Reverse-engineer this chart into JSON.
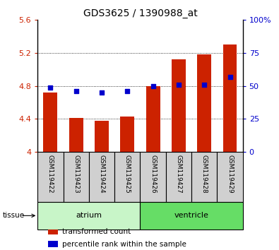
{
  "title": "GDS3625 / 1390988_at",
  "samples": [
    "GSM119422",
    "GSM119423",
    "GSM119424",
    "GSM119425",
    "GSM119426",
    "GSM119427",
    "GSM119428",
    "GSM119429"
  ],
  "transformed_counts": [
    4.72,
    4.41,
    4.38,
    4.43,
    4.8,
    5.12,
    5.18,
    5.3
  ],
  "percentile_ranks": [
    49,
    46,
    45,
    46,
    50,
    51,
    51,
    57
  ],
  "bar_bottom": 4.0,
  "ylim_left": [
    4.0,
    5.6
  ],
  "ylim_right": [
    0,
    100
  ],
  "yticks_left": [
    4.0,
    4.4,
    4.8,
    5.2,
    5.6
  ],
  "ytick_labels_left": [
    "4",
    "4.4",
    "4.8",
    "5.2",
    "5.6"
  ],
  "yticks_right": [
    0,
    25,
    50,
    75,
    100
  ],
  "ytick_labels_right": [
    "0",
    "25",
    "50",
    "75",
    "100%"
  ],
  "tissue_groups": [
    {
      "label": "atrium",
      "samples": [
        0,
        1,
        2,
        3
      ],
      "color": "#c8f5c8"
    },
    {
      "label": "ventricle",
      "samples": [
        4,
        5,
        6,
        7
      ],
      "color": "#66dd66"
    }
  ],
  "bar_color": "#cc2200",
  "dot_color": "#0000cc",
  "background_color": "#ffffff",
  "sample_box_color": "#d0d0d0",
  "legend_items": [
    {
      "color": "#cc2200",
      "label": "transformed count"
    },
    {
      "color": "#0000cc",
      "label": "percentile rank within the sample"
    }
  ]
}
